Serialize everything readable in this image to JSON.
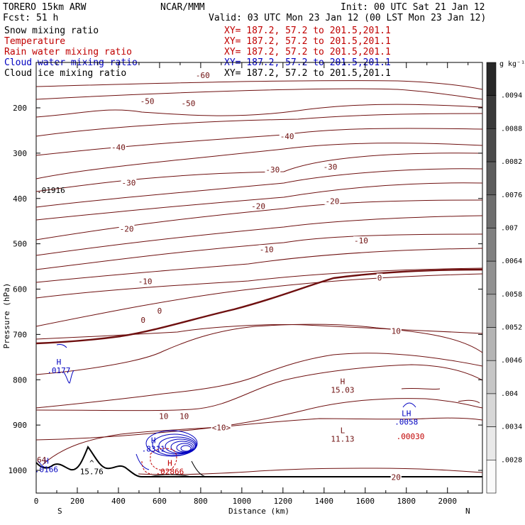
{
  "header": {
    "model": "TORERO  15km ARW",
    "center": "NCAR/MMM",
    "init": "Init: 00 UTC Sat 21 Jan 12",
    "fcst": "Fcst:   51 h",
    "valid": "Valid: 03 UTC Mon 23 Jan 12 (00 LST Mon 23 Jan 12)"
  },
  "fields": [
    {
      "name": "Snow mixing ratio",
      "xy": "XY= 187.2, 57.2 to 201.5,201.1",
      "color": "#000000"
    },
    {
      "name": "Temperature",
      "xy": "XY= 187.2, 57.2 to 201.5,201.1",
      "color": "#c00000"
    },
    {
      "name": "Rain water mixing ratio",
      "xy": "XY= 187.2, 57.2 to 201.5,201.1",
      "color": "#c00000"
    },
    {
      "name": "Cloud water mixing ratio",
      "xy": "XY= 187.2, 57.2 to 201.5,201.1",
      "color": "#0000c0"
    },
    {
      "name": "Cloud ice mixing ratio",
      "xy": "XY= 187.2, 57.2 to 201.5,201.1",
      "color": "#000000"
    }
  ],
  "chart_data": {
    "type": "contour cross-section",
    "xlabel": "Distance (km)",
    "ylabel": "Pressure (hPa)",
    "xlim": [
      0,
      2170
    ],
    "ylim_hpa": [
      1050,
      100
    ],
    "x_ticks": [
      0,
      200,
      400,
      600,
      800,
      1000,
      1200,
      1400,
      1600,
      1800,
      2000
    ],
    "y_ticks": [
      200,
      300,
      400,
      500,
      600,
      700,
      800,
      900,
      1000
    ],
    "end_labels": {
      "left": "S",
      "right": "N"
    },
    "colorbar": {
      "unit": "g kg⁻¹",
      "levels": [
        ".0094",
        ".0088",
        ".0082",
        ".0076",
        ".007",
        ".0064",
        ".0058",
        ".0052",
        ".0046",
        ".004",
        ".0034",
        ".0028"
      ]
    },
    "temperature_contours_labeled": [
      -60,
      -50,
      -40,
      -30,
      -20,
      -10,
      0,
      10,
      20
    ],
    "labels": [
      {
        "text": "-60",
        "x": 810,
        "p": 128
      },
      {
        "text": "-50",
        "x": 540,
        "p": 185
      },
      {
        "text": "-50",
        "x": 740,
        "p": 190
      },
      {
        "text": "-40",
        "x": 400,
        "p": 287
      },
      {
        "text": "-40",
        "x": 1220,
        "p": 263
      },
      {
        "text": "-30",
        "x": 450,
        "p": 365
      },
      {
        "text": "-30",
        "x": 1150,
        "p": 336
      },
      {
        "text": "-30",
        "x": 1430,
        "p": 330
      },
      {
        "text": "-20",
        "x": 440,
        "p": 467
      },
      {
        "text": "-20",
        "x": 1080,
        "p": 417
      },
      {
        "text": "-20",
        "x": 1440,
        "p": 406
      },
      {
        "text": "-10",
        "x": 530,
        "p": 583
      },
      {
        "text": "-10",
        "x": 1120,
        "p": 512
      },
      {
        "text": "-10",
        "x": 1580,
        "p": 493
      },
      {
        "text": "0",
        "x": 520,
        "p": 668
      },
      {
        "text": "0",
        "x": 600,
        "p": 648
      },
      {
        "text": "0",
        "x": 1670,
        "p": 575
      },
      {
        "text": "10",
        "x": 1750,
        "p": 692
      },
      {
        "text": "10",
        "x": 620,
        "p": 880
      },
      {
        "text": "10",
        "x": 720,
        "p": 880
      },
      {
        "text": "20",
        "x": 1750,
        "p": 1015
      },
      {
        "text": "<10>",
        "x": 900,
        "p": 905
      }
    ],
    "extrema": [
      {
        "mark": "H",
        "value": "15.03",
        "x": 1490,
        "p": 810,
        "color": "#6e0f0f"
      },
      {
        "mark": "L",
        "value": "11.13",
        "x": 1490,
        "p": 918,
        "color": "#6e0f0f"
      },
      {
        "mark": "H",
        "value": ".0177",
        "x": 110,
        "p": 767,
        "color": "#0000c0"
      },
      {
        "mark": "H",
        "value": ".0166",
        "x": 50,
        "p": 985,
        "color": "#0000c0"
      },
      {
        "mark": "H",
        "value": ".8311",
        "x": 570,
        "p": 940,
        "color": "#0000c0"
      },
      {
        "mark": "H",
        "value": ".02866",
        "x": 650,
        "p": 990,
        "color": "#c00000"
      },
      {
        "mark": "LH",
        "value": ".0058",
        "x": 1800,
        "p": 880,
        "color": "#0000c0"
      },
      {
        "mark": "",
        "value": ".00030",
        "x": 1820,
        "p": 912,
        "color": "#c00000"
      },
      {
        "mark": "^",
        "value": "15.76",
        "x": 270,
        "p": 990,
        "color": "#000000"
      }
    ],
    "side_values": [
      ".01916",
      "64"
    ]
  }
}
